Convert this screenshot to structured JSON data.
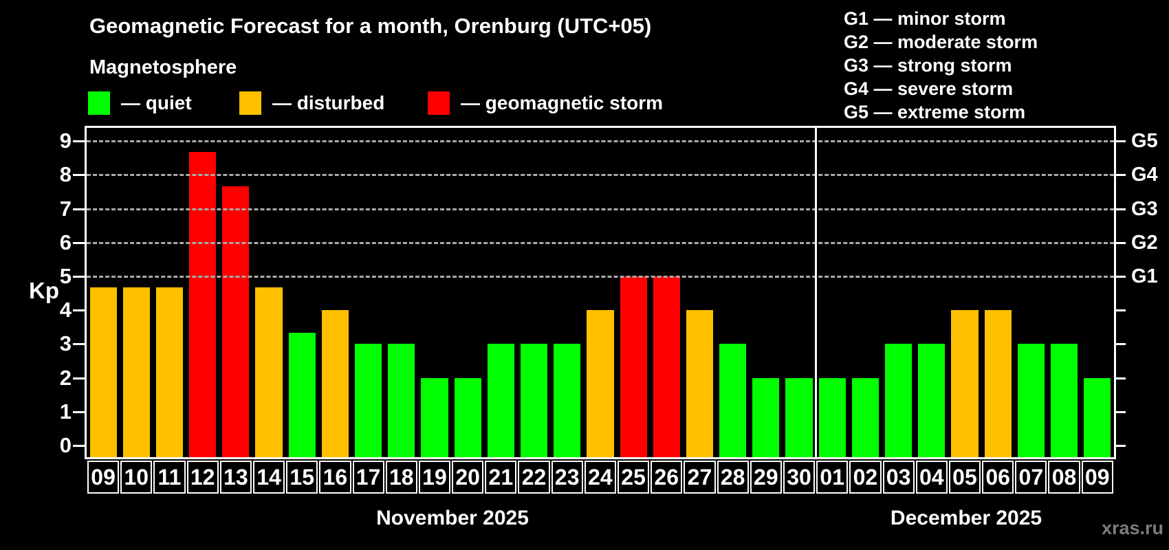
{
  "title": "Geomagnetic Forecast for a month, Orenburg (UTC+05)",
  "subtitle": "Magnetosphere",
  "legend": {
    "items": [
      {
        "label": "— quiet",
        "color": "#00ff00",
        "level": "quiet"
      },
      {
        "label": "— disturbed",
        "color": "#ffc000",
        "level": "disturbed"
      },
      {
        "label": "— geomagnetic storm",
        "color": "#ff0000",
        "level": "storm"
      }
    ]
  },
  "g_legend": [
    "G1 — minor storm",
    "G2 — moderate storm",
    "G3 — strong storm",
    "G4 — severe storm",
    "G5 — extreme storm"
  ],
  "watermark": "xras.ru",
  "chart_data": {
    "type": "bar",
    "title": "Geomagnetic Forecast for a month, Orenburg (UTC+05)",
    "ylabel": "Kp",
    "ylim": [
      0,
      9.4
    ],
    "y_ticks": [
      0,
      1,
      2,
      3,
      4,
      5,
      6,
      7,
      8,
      9
    ],
    "gridlines": [
      5,
      6,
      7,
      8,
      9
    ],
    "grid_style": "dashed horizontal lines at Kp 5-9 only",
    "legend_position": "top",
    "right_axis": [
      {
        "label": "G1",
        "kp": 5
      },
      {
        "label": "G2",
        "kp": 6
      },
      {
        "label": "G3",
        "kp": 7
      },
      {
        "label": "G4",
        "kp": 8
      },
      {
        "label": "G5",
        "kp": 9
      }
    ],
    "level_colors": {
      "quiet": "#00ff00",
      "disturbed": "#ffc000",
      "storm": "#ff0000"
    },
    "months": [
      {
        "label": "November 2025",
        "days": [
          {
            "day": "09",
            "kp": 4.67,
            "level": "disturbed"
          },
          {
            "day": "10",
            "kp": 4.67,
            "level": "disturbed"
          },
          {
            "day": "11",
            "kp": 4.67,
            "level": "disturbed"
          },
          {
            "day": "12",
            "kp": 8.67,
            "level": "storm"
          },
          {
            "day": "13",
            "kp": 7.67,
            "level": "storm"
          },
          {
            "day": "14",
            "kp": 4.67,
            "level": "disturbed"
          },
          {
            "day": "15",
            "kp": 3.33,
            "level": "quiet"
          },
          {
            "day": "16",
            "kp": 4,
            "level": "disturbed"
          },
          {
            "day": "17",
            "kp": 3,
            "level": "quiet"
          },
          {
            "day": "18",
            "kp": 3,
            "level": "quiet"
          },
          {
            "day": "19",
            "kp": 2,
            "level": "quiet"
          },
          {
            "day": "20",
            "kp": 2,
            "level": "quiet"
          },
          {
            "day": "21",
            "kp": 3,
            "level": "quiet"
          },
          {
            "day": "22",
            "kp": 3,
            "level": "quiet"
          },
          {
            "day": "23",
            "kp": 3,
            "level": "quiet"
          },
          {
            "day": "24",
            "kp": 4,
            "level": "disturbed"
          },
          {
            "day": "25",
            "kp": 5,
            "level": "storm"
          },
          {
            "day": "26",
            "kp": 5,
            "level": "storm"
          },
          {
            "day": "27",
            "kp": 4,
            "level": "disturbed"
          },
          {
            "day": "28",
            "kp": 3,
            "level": "quiet"
          },
          {
            "day": "29",
            "kp": 2,
            "level": "quiet"
          },
          {
            "day": "30",
            "kp": 2,
            "level": "quiet"
          }
        ]
      },
      {
        "label": "December 2025",
        "days": [
          {
            "day": "01",
            "kp": 2,
            "level": "quiet"
          },
          {
            "day": "02",
            "kp": 2,
            "level": "quiet"
          },
          {
            "day": "03",
            "kp": 3,
            "level": "quiet"
          },
          {
            "day": "04",
            "kp": 3,
            "level": "quiet"
          },
          {
            "day": "05",
            "kp": 4,
            "level": "disturbed"
          },
          {
            "day": "06",
            "kp": 4,
            "level": "disturbed"
          },
          {
            "day": "07",
            "kp": 3,
            "level": "quiet"
          },
          {
            "day": "08",
            "kp": 3,
            "level": "quiet"
          },
          {
            "day": "09",
            "kp": 2,
            "level": "quiet"
          }
        ]
      }
    ]
  }
}
